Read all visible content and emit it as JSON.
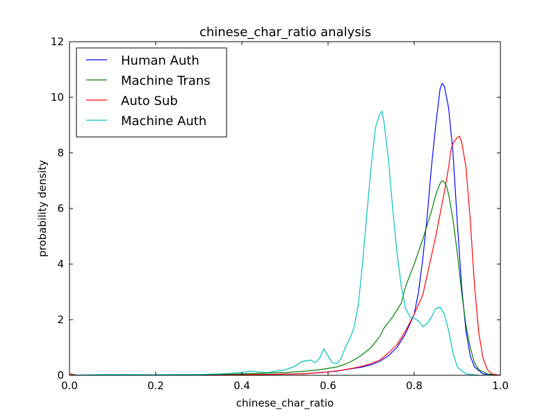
{
  "chart_data": {
    "type": "line",
    "title": "chinese_char_ratio analysis",
    "xlabel": "chinese_char_ratio",
    "ylabel": "probability density",
    "xlim": [
      0.0,
      1.0
    ],
    "ylim": [
      0,
      12
    ],
    "xticks": [
      "0.0",
      "0.2",
      "0.4",
      "0.6",
      "0.8",
      "1.0"
    ],
    "yticks": [
      "0",
      "2",
      "4",
      "6",
      "8",
      "10",
      "12"
    ],
    "grid": false,
    "legend_position": "upper-left",
    "series": [
      {
        "name": "Human Auth",
        "color": "#0000ff",
        "points": [
          [
            0.0,
            0.05
          ],
          [
            0.02,
            0.0
          ],
          [
            0.1,
            0.0
          ],
          [
            0.2,
            0.0
          ],
          [
            0.3,
            0.0
          ],
          [
            0.4,
            0.02
          ],
          [
            0.45,
            0.03
          ],
          [
            0.5,
            0.04
          ],
          [
            0.55,
            0.06
          ],
          [
            0.58,
            0.1
          ],
          [
            0.6,
            0.12
          ],
          [
            0.62,
            0.15
          ],
          [
            0.64,
            0.2
          ],
          [
            0.66,
            0.25
          ],
          [
            0.68,
            0.3
          ],
          [
            0.7,
            0.38
          ],
          [
            0.72,
            0.5
          ],
          [
            0.74,
            0.7
          ],
          [
            0.76,
            1.0
          ],
          [
            0.78,
            1.5
          ],
          [
            0.8,
            2.2
          ],
          [
            0.81,
            3.0
          ],
          [
            0.82,
            4.2
          ],
          [
            0.83,
            5.7
          ],
          [
            0.84,
            7.5
          ],
          [
            0.85,
            9.0
          ],
          [
            0.86,
            10.3
          ],
          [
            0.865,
            10.5
          ],
          [
            0.87,
            10.4
          ],
          [
            0.875,
            10.0
          ],
          [
            0.88,
            9.6
          ],
          [
            0.89,
            8.0
          ],
          [
            0.9,
            5.5
          ],
          [
            0.91,
            3.2
          ],
          [
            0.92,
            1.6
          ],
          [
            0.93,
            0.7
          ],
          [
            0.94,
            0.3
          ],
          [
            0.96,
            0.05
          ],
          [
            1.0,
            0.0
          ]
        ]
      },
      {
        "name": "Machine Trans",
        "color": "#008000",
        "points": [
          [
            0.0,
            0.05
          ],
          [
            0.02,
            0.0
          ],
          [
            0.1,
            0.0
          ],
          [
            0.2,
            0.0
          ],
          [
            0.3,
            0.02
          ],
          [
            0.4,
            0.05
          ],
          [
            0.5,
            0.1
          ],
          [
            0.55,
            0.15
          ],
          [
            0.58,
            0.2
          ],
          [
            0.6,
            0.25
          ],
          [
            0.62,
            0.3
          ],
          [
            0.64,
            0.4
          ],
          [
            0.66,
            0.55
          ],
          [
            0.68,
            0.75
          ],
          [
            0.7,
            1.0
          ],
          [
            0.72,
            1.4
          ],
          [
            0.73,
            1.7
          ],
          [
            0.75,
            2.1
          ],
          [
            0.77,
            2.6
          ],
          [
            0.78,
            3.2
          ],
          [
            0.8,
            4.0
          ],
          [
            0.82,
            4.9
          ],
          [
            0.84,
            5.9
          ],
          [
            0.85,
            6.5
          ],
          [
            0.86,
            6.9
          ],
          [
            0.865,
            7.0
          ],
          [
            0.87,
            6.95
          ],
          [
            0.875,
            6.8
          ],
          [
            0.88,
            6.5
          ],
          [
            0.89,
            5.6
          ],
          [
            0.9,
            4.4
          ],
          [
            0.91,
            3.0
          ],
          [
            0.92,
            1.8
          ],
          [
            0.93,
            1.0
          ],
          [
            0.94,
            0.45
          ],
          [
            0.95,
            0.2
          ],
          [
            0.97,
            0.05
          ],
          [
            1.0,
            0.0
          ]
        ]
      },
      {
        "name": "Auto Sub",
        "color": "#ff0000",
        "points": [
          [
            0.0,
            0.05
          ],
          [
            0.02,
            0.0
          ],
          [
            0.1,
            0.0
          ],
          [
            0.2,
            0.0
          ],
          [
            0.3,
            0.0
          ],
          [
            0.4,
            0.02
          ],
          [
            0.5,
            0.04
          ],
          [
            0.55,
            0.06
          ],
          [
            0.6,
            0.12
          ],
          [
            0.63,
            0.18
          ],
          [
            0.66,
            0.26
          ],
          [
            0.68,
            0.33
          ],
          [
            0.7,
            0.42
          ],
          [
            0.72,
            0.55
          ],
          [
            0.74,
            0.8
          ],
          [
            0.76,
            1.1
          ],
          [
            0.78,
            1.6
          ],
          [
            0.8,
            2.2
          ],
          [
            0.82,
            2.9
          ],
          [
            0.83,
            3.6
          ],
          [
            0.84,
            4.3
          ],
          [
            0.85,
            5.0
          ],
          [
            0.86,
            5.8
          ],
          [
            0.87,
            6.6
          ],
          [
            0.88,
            7.5
          ],
          [
            0.885,
            8.1
          ],
          [
            0.89,
            8.35
          ],
          [
            0.9,
            8.55
          ],
          [
            0.905,
            8.6
          ],
          [
            0.91,
            8.4
          ],
          [
            0.92,
            7.5
          ],
          [
            0.93,
            5.6
          ],
          [
            0.94,
            3.2
          ],
          [
            0.95,
            1.5
          ],
          [
            0.96,
            0.6
          ],
          [
            0.97,
            0.2
          ],
          [
            0.98,
            0.05
          ],
          [
            1.0,
            0.0
          ]
        ]
      },
      {
        "name": "Machine Auth",
        "color": "#00bfbf",
        "points": [
          [
            0.0,
            0.0
          ],
          [
            0.05,
            0.02
          ],
          [
            0.1,
            0.03
          ],
          [
            0.2,
            0.02
          ],
          [
            0.25,
            0.03
          ],
          [
            0.3,
            0.03
          ],
          [
            0.35,
            0.05
          ],
          [
            0.38,
            0.08
          ],
          [
            0.4,
            0.1
          ],
          [
            0.42,
            0.15
          ],
          [
            0.44,
            0.12
          ],
          [
            0.46,
            0.1
          ],
          [
            0.48,
            0.15
          ],
          [
            0.5,
            0.2
          ],
          [
            0.52,
            0.3
          ],
          [
            0.54,
            0.5
          ],
          [
            0.56,
            0.55
          ],
          [
            0.57,
            0.45
          ],
          [
            0.58,
            0.6
          ],
          [
            0.59,
            0.95
          ],
          [
            0.6,
            0.7
          ],
          [
            0.61,
            0.45
          ],
          [
            0.62,
            0.42
          ],
          [
            0.63,
            0.6
          ],
          [
            0.64,
            1.0
          ],
          [
            0.65,
            1.3
          ],
          [
            0.66,
            1.7
          ],
          [
            0.67,
            2.5
          ],
          [
            0.68,
            4.0
          ],
          [
            0.69,
            5.8
          ],
          [
            0.7,
            7.5
          ],
          [
            0.71,
            8.9
          ],
          [
            0.72,
            9.4
          ],
          [
            0.725,
            9.5
          ],
          [
            0.73,
            9.1
          ],
          [
            0.74,
            7.8
          ],
          [
            0.75,
            6.0
          ],
          [
            0.76,
            4.4
          ],
          [
            0.77,
            3.2
          ],
          [
            0.78,
            2.4
          ],
          [
            0.79,
            2.1
          ],
          [
            0.8,
            2.05
          ],
          [
            0.81,
            1.95
          ],
          [
            0.82,
            1.75
          ],
          [
            0.83,
            1.85
          ],
          [
            0.84,
            2.1
          ],
          [
            0.85,
            2.4
          ],
          [
            0.86,
            2.45
          ],
          [
            0.87,
            2.2
          ],
          [
            0.88,
            1.6
          ],
          [
            0.89,
            0.8
          ],
          [
            0.9,
            0.3
          ],
          [
            0.92,
            0.05
          ],
          [
            0.95,
            0.0
          ],
          [
            1.0,
            0.0
          ]
        ]
      }
    ]
  }
}
